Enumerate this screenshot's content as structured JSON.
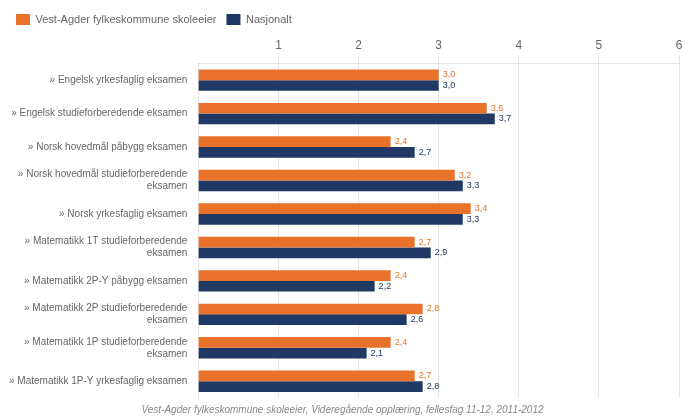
{
  "chart_data": {
    "type": "bar",
    "orientation": "horizontal",
    "categories": [
      "» Matematikk 1P-Y yrkesfaglig eksamen",
      "» Matematikk 1P studieforberedende\neksamen",
      "» Matematikk 2P studieforberedende\neksamen",
      "» Matematikk 2P-Y påbygg eksamen",
      "» Matematikk 1T studieforberedende\neksamen",
      "» Norsk yrkesfaglig eksamen",
      "» Norsk hovedmål studieforberedende\neksamen",
      "» Norsk hovedmål påbygg eksamen",
      "» Engelsk studieforberedende eksamen",
      "» Engelsk yrkesfaglig eksamen"
    ],
    "series": [
      {
        "name": "Vest-Agder fylkeskommune skoleeier",
        "color": "#E8722A",
        "values": [
          2.7,
          2.4,
          2.8,
          2.4,
          2.7,
          3.4,
          3.2,
          2.4,
          3.6,
          3.0
        ],
        "value_labels": [
          "2,7",
          "2,4",
          "2,8",
          "2,4",
          "2,7",
          "3,4",
          "3,2",
          "2,4",
          "3,6",
          "3,0"
        ]
      },
      {
        "name": "Nasjonalt",
        "color": "#1F3864",
        "values": [
          2.8,
          2.1,
          2.6,
          2.2,
          2.9,
          3.3,
          3.3,
          2.7,
          3.7,
          3.0
        ],
        "value_labels": [
          "2,8",
          "2,1",
          "2,6",
          "2,2",
          "2,9",
          "3,3",
          "3,3",
          "2,7",
          "3,7",
          "3,0"
        ]
      }
    ],
    "xlim": [
      0,
      6
    ],
    "xticks": [
      1,
      2,
      3,
      4,
      5,
      6
    ],
    "grid": true,
    "legend": "top",
    "data_labels": true,
    "annotations": [
      "Vest-Agder fylkeskommune skoleeier, Videregående opplæring, fellesfag 11-12, 2011-2012"
    ]
  }
}
